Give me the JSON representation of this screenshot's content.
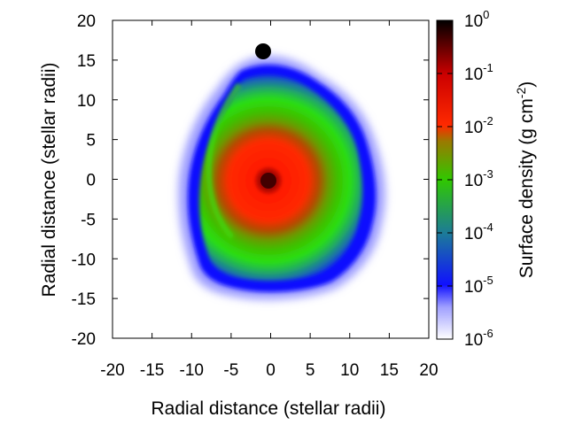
{
  "chart_data": {
    "type": "heatmap",
    "title": "",
    "xlabel": "Radial distance (stellar radii)",
    "ylabel": "Radial distance (stellar radii)",
    "xlim": [
      -20,
      20
    ],
    "ylim": [
      -20,
      20
    ],
    "x_ticks": [
      "-20",
      "-15",
      "-10",
      "-5",
      "0",
      "5",
      "10",
      "15",
      "20"
    ],
    "y_ticks": [
      "20",
      "15",
      "10",
      "5",
      "0",
      "-5",
      "-10",
      "-15",
      "-20"
    ],
    "colorbar": {
      "label": "Surface density (g cm",
      "label_exponent": "-2",
      "label_close": ")",
      "scale": "log",
      "range": [
        1e-06,
        1
      ],
      "tick_base": "10",
      "tick_exponents": [
        "0",
        "-1",
        "-2",
        "-3",
        "-4",
        "-5",
        "-6"
      ],
      "colors": [
        "#000000",
        "#cc0000",
        "#ff2a00",
        "#30c800",
        "#1c7a9a",
        "#1010ff",
        "#ffffff"
      ]
    },
    "points": [
      {
        "name": "central star",
        "x": 0,
        "y": 0,
        "surface_density_level": "1e0"
      },
      {
        "name": "companion",
        "x": -0.5,
        "y": 16.3,
        "surface_density_level": "1e0"
      }
    ],
    "grid": false,
    "legend": "colorbar right"
  }
}
